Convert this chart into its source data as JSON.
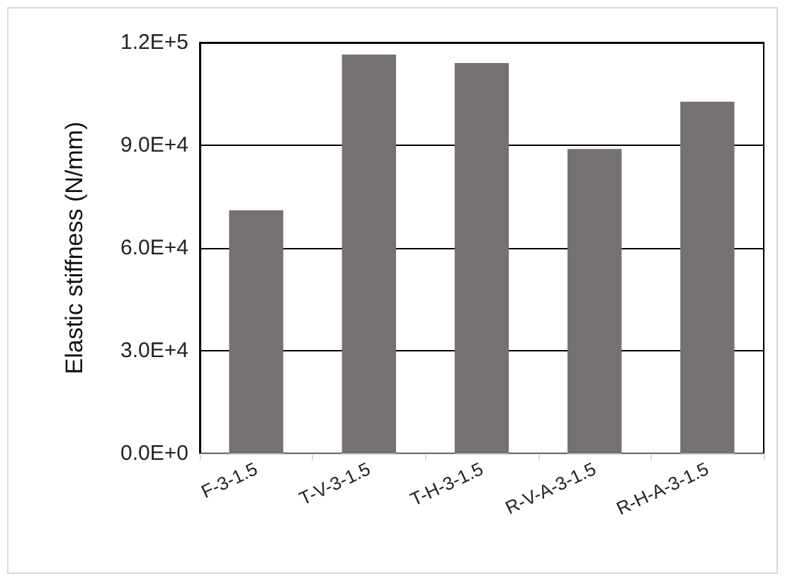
{
  "chart_data": {
    "type": "bar",
    "ylabel": "Elastic stiffness (N/mm)",
    "categories": [
      "F-3-1.5",
      "T-V-3-1.5",
      "T-H-3-1.5",
      "R-V-A-3-1.5",
      "R-H-A-3-1.5"
    ],
    "values": [
      71000,
      116500,
      114000,
      88900,
      102700
    ],
    "color": "#767171",
    "ylim": [
      0,
      120000
    ],
    "yticks": [
      {
        "value": 0,
        "label": "0.0E+0"
      },
      {
        "value": 30000,
        "label": "3.0E+4"
      },
      {
        "value": 60000,
        "label": "6.0E+4"
      },
      {
        "value": 90000,
        "label": "9.0E+4"
      },
      {
        "value": 120000,
        "label": "1.2E+5"
      }
    ],
    "grid": "y"
  }
}
